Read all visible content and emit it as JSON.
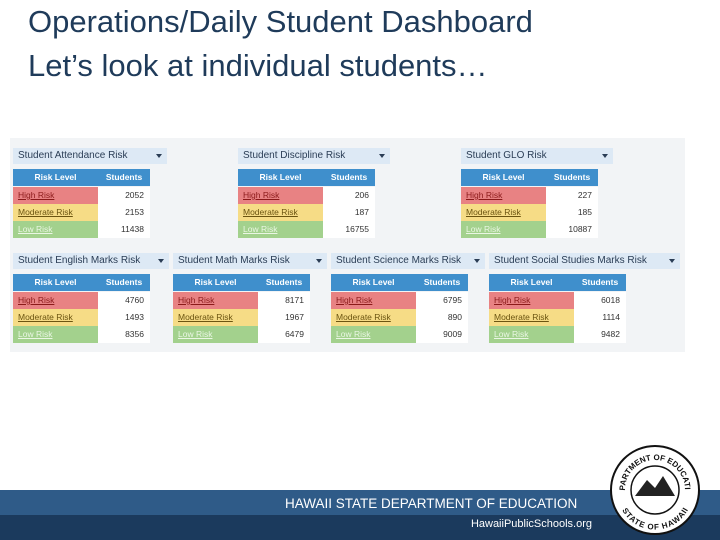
{
  "slide": {
    "title_lines": [
      "Operations/Daily Student Dashboard",
      "Let’s look at individual students…"
    ],
    "panels": [
      {
        "title": "Student Attendance Risk",
        "headers": [
          "Risk Level",
          "Students"
        ],
        "rows": [
          [
            "High Risk",
            2052
          ],
          [
            "Moderate Risk",
            2153
          ],
          [
            "Low Risk",
            11438
          ]
        ]
      },
      {
        "title": "Student Discipline Risk",
        "headers": [
          "Risk Level",
          "Students"
        ],
        "rows": [
          [
            "High Risk",
            206
          ],
          [
            "Moderate Risk",
            187
          ],
          [
            "Low Risk",
            16755
          ]
        ]
      },
      {
        "title": "Student GLO Risk",
        "headers": [
          "Risk Level",
          "Students"
        ],
        "rows": [
          [
            "High Risk",
            227
          ],
          [
            "Moderate Risk",
            185
          ],
          [
            "Low Risk",
            10887
          ]
        ]
      },
      {
        "title": "Student English Marks Risk",
        "headers": [
          "Risk Level",
          "Students"
        ],
        "rows": [
          [
            "High Risk",
            4760
          ],
          [
            "Moderate Risk",
            1493
          ],
          [
            "Low Risk",
            8356
          ]
        ]
      },
      {
        "title": "Student Math Marks Risk",
        "headers": [
          "Risk Level",
          "Students"
        ],
        "rows": [
          [
            "High Risk",
            8171
          ],
          [
            "Moderate Risk",
            1967
          ],
          [
            "Low Risk",
            6479
          ]
        ]
      },
      {
        "title": "Student Science Marks Risk",
        "headers": [
          "Risk Level",
          "Students"
        ],
        "rows": [
          [
            "High Risk",
            6795
          ],
          [
            "Moderate Risk",
            890
          ],
          [
            "Low Risk",
            9009
          ]
        ]
      },
      {
        "title": "Student Social Studies Marks Risk",
        "headers": [
          "Risk Level",
          "Students"
        ],
        "rows": [
          [
            "High Risk",
            6018
          ],
          [
            "Moderate Risk",
            1114
          ],
          [
            "Low Risk",
            9482
          ]
        ]
      }
    ],
    "footer": {
      "department": "HAWAII STATE DEPARTMENT OF EDUCATION",
      "website": "HawaiiPublicSchools.org"
    },
    "seal": {
      "top": "DEPARTMENT OF EDUCATION",
      "bottom": "STATE OF HAWAII"
    }
  }
}
